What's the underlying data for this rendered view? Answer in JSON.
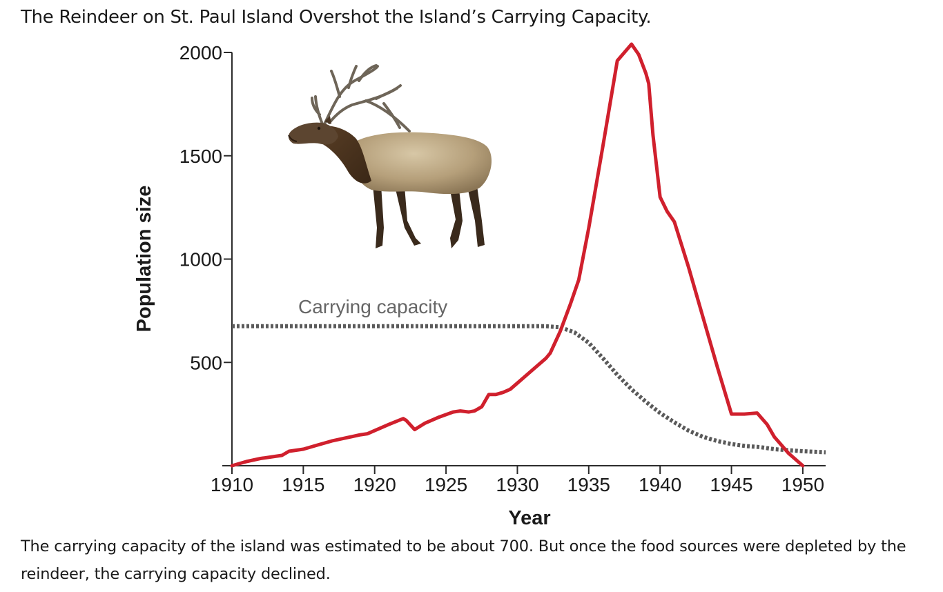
{
  "title": "The Reindeer on St. Paul Island Overshot the Island’s Carrying Capacity.",
  "caption": "The carrying capacity of the island was estimated to be about 700. But once the food sources were depleted by the reindeer, the carrying capacity declined.",
  "chart_data": {
    "type": "line",
    "xlabel": "Year",
    "ylabel": "Population size",
    "xlim": [
      1910,
      1951.6
    ],
    "ylim": [
      0,
      2000
    ],
    "xticks": [
      1910,
      1915,
      1920,
      1925,
      1930,
      1935,
      1940,
      1945,
      1950
    ],
    "yticks": [
      500,
      1000,
      1500,
      2000
    ],
    "grid": false,
    "image": "elk-illustration",
    "annotations": [
      {
        "text": "Carrying capacity",
        "series": "carrying-capacity"
      }
    ],
    "series": [
      {
        "id": "population",
        "style": "solid",
        "color": "#d0202d",
        "x": [
          1910,
          1911,
          1912,
          1913,
          1913.5,
          1914,
          1915,
          1916,
          1917,
          1918,
          1919,
          1919.5,
          1920,
          1921,
          1922,
          1922.2,
          1922.8,
          1923.5,
          1924.5,
          1925.5,
          1926,
          1926.6,
          1927,
          1927.5,
          1928,
          1928.5,
          1929,
          1929.5,
          1930,
          1931,
          1932,
          1932.3,
          1933,
          1933.7,
          1934.3,
          1935,
          1936,
          1937,
          1938,
          1938.5,
          1939,
          1939.2,
          1939.5,
          1940,
          1940.5,
          1941,
          1942,
          1943,
          1944,
          1945,
          1945.9,
          1946.8,
          1947.5,
          1948,
          1949,
          1950
        ],
        "y": [
          0,
          20,
          35,
          45,
          50,
          70,
          80,
          100,
          120,
          135,
          150,
          155,
          170,
          200,
          228,
          220,
          175,
          205,
          235,
          260,
          265,
          260,
          265,
          285,
          345,
          345,
          355,
          370,
          400,
          460,
          520,
          545,
          650,
          780,
          900,
          1150,
          1550,
          1960,
          2040,
          1990,
          1900,
          1850,
          1600,
          1300,
          1230,
          1180,
          960,
          720,
          480,
          250,
          250,
          255,
          200,
          140,
          60,
          0
        ]
      },
      {
        "id": "carrying-capacity",
        "style": "dotted",
        "color": "#5a5a5a",
        "x": [
          1910,
          1915,
          1920,
          1925,
          1930,
          1932,
          1933,
          1934,
          1935,
          1936,
          1937,
          1938,
          1939,
          1940,
          1941,
          1942,
          1943,
          1944,
          1945,
          1946,
          1947,
          1948,
          1949,
          1950,
          1951.6
        ],
        "y": [
          675,
          675,
          675,
          675,
          675,
          675,
          670,
          645,
          595,
          520,
          440,
          370,
          310,
          255,
          210,
          170,
          140,
          120,
          105,
          95,
          90,
          80,
          75,
          70,
          65
        ]
      }
    ]
  }
}
